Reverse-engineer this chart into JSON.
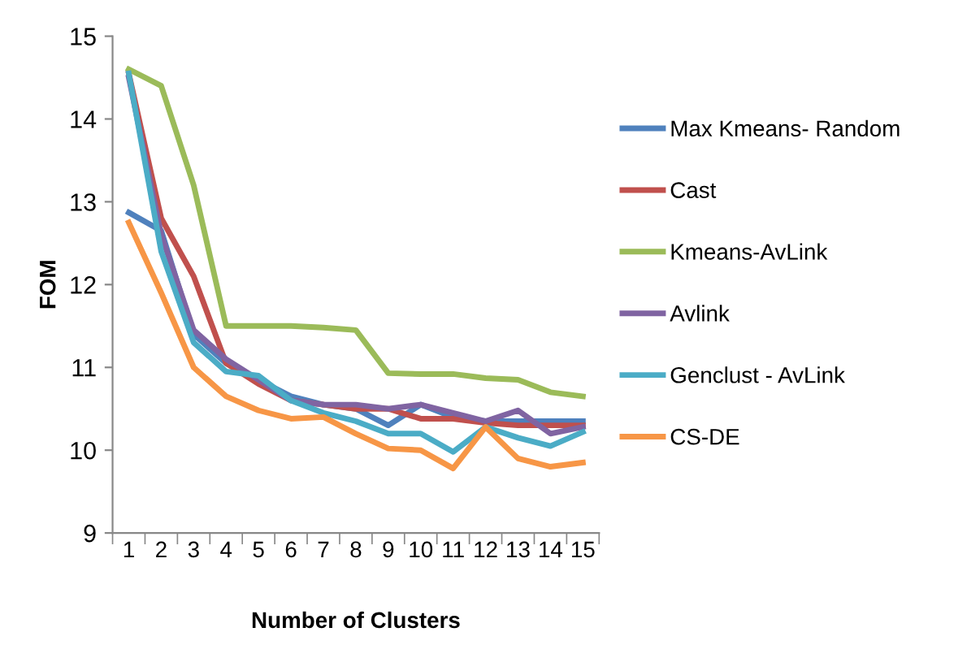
{
  "chart_data": {
    "type": "line",
    "xlabel": "Number of Clusters",
    "ylabel": "FOM",
    "categories": [
      "1",
      "2",
      "3",
      "4",
      "5",
      "6",
      "7",
      "8",
      "9",
      "10",
      "11",
      "12",
      "13",
      "14",
      "15"
    ],
    "ylim": [
      9,
      15
    ],
    "yticks": [
      9,
      10,
      11,
      12,
      13,
      14,
      15
    ],
    "grid": false,
    "legend": "right",
    "marker": "none",
    "line_style": "solid",
    "series": [
      {
        "name": "Max Kmeans- Random",
        "color": "#4f81bd",
        "values": [
          12.87,
          12.65,
          11.4,
          11.05,
          10.85,
          10.65,
          10.55,
          10.5,
          10.3,
          10.55,
          10.4,
          10.35,
          10.35,
          10.35,
          10.35
        ]
      },
      {
        "name": "Cast",
        "color": "#c0504d",
        "values": [
          14.55,
          12.8,
          12.1,
          11.05,
          10.8,
          10.6,
          10.55,
          10.5,
          10.5,
          10.38,
          10.38,
          10.33,
          10.3,
          10.3,
          10.3
        ]
      },
      {
        "name": "Kmeans-AvLink",
        "color": "#9bbb59",
        "values": [
          14.6,
          14.4,
          13.2,
          11.5,
          11.5,
          11.5,
          11.48,
          11.45,
          10.93,
          10.92,
          10.92,
          10.87,
          10.85,
          10.7,
          10.65
        ]
      },
      {
        "name": "Avlink",
        "color": "#8064a2",
        "values": [
          14.5,
          12.6,
          11.45,
          11.1,
          10.85,
          10.6,
          10.55,
          10.55,
          10.5,
          10.55,
          10.45,
          10.35,
          10.48,
          10.2,
          10.28
        ]
      },
      {
        "name": "Genclust - AvLink",
        "color": "#4bacc6",
        "values": [
          14.55,
          12.4,
          11.3,
          10.95,
          10.9,
          10.6,
          10.45,
          10.35,
          10.2,
          10.2,
          9.98,
          10.28,
          10.15,
          10.05,
          10.22
        ]
      },
      {
        "name": "CS-DE",
        "color": "#f79646",
        "values": [
          12.75,
          11.9,
          11.0,
          10.65,
          10.48,
          10.38,
          10.4,
          10.2,
          10.02,
          10.0,
          9.78,
          10.28,
          9.9,
          9.8,
          9.85
        ]
      }
    ]
  }
}
